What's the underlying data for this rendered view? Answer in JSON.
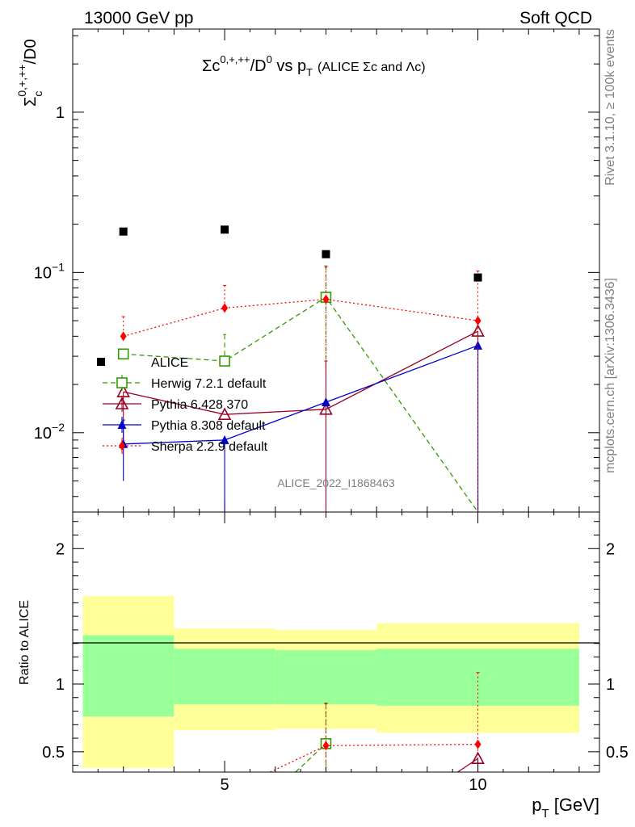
{
  "header": {
    "left": "13000 GeV pp",
    "right": "Soft QCD"
  },
  "side_labels": {
    "rivet": "Rivet 3.1.10, ≥ 100k events",
    "mcplots": "mcplots.cern.ch [arXiv:1306.3436]"
  },
  "analysis_id": "ALICE_2022_I1868463",
  "chart_data": [
    {
      "type": "line",
      "title_parts": {
        "main_base": "Σc",
        "main_sup": "0,+,++",
        "main_mid": "/D",
        "main_sup2": "0",
        "main_vs": " vs p",
        "main_sub": "T",
        "small": "(ALICE Σc and Λc)"
      },
      "ylabel_parts": {
        "base": "Σ",
        "sub": "c",
        "sup": "0,+,++",
        "tail": "/D0"
      },
      "yscale": "log",
      "ylim": [
        0.0032,
        3.3
      ],
      "xlim": [
        2,
        12.4
      ],
      "ytick_labels": [
        {
          "v": 1,
          "base": "1",
          "exp": ""
        },
        {
          "v": 0.1,
          "base": "10",
          "exp": "−1"
        },
        {
          "v": 0.01,
          "base": "10",
          "exp": "−2"
        }
      ],
      "legend_position": "left-middle",
      "data": {
        "name": "ALICE",
        "x": [
          3,
          5,
          7,
          10
        ],
        "y": [
          0.18,
          0.185,
          0.13,
          0.093
        ],
        "color": "#000000"
      },
      "series": [
        {
          "name": "Herwig 7.2.1 default",
          "x": [
            3,
            5,
            7,
            10
          ],
          "y": [
            0.031,
            0.028,
            0.07,
            0.0001
          ],
          "err_lo": [
            0.0,
            0.0,
            0.045,
            0.0
          ],
          "err_hi": [
            0.0,
            0.013,
            0.04,
            0.0
          ],
          "color": "#339900",
          "dash": "6,4",
          "marker": "open-square"
        },
        {
          "name": "Pythia 6.428 370",
          "x": [
            3,
            5,
            7,
            10
          ],
          "y": [
            0.018,
            0.013,
            0.014,
            0.043
          ],
          "err_lo": [
            0.009,
            0.0,
            0.014,
            0.043
          ],
          "err_hi": [
            0.0,
            0.0,
            0.014,
            0.0
          ],
          "color": "#990022",
          "dash": "",
          "marker": "open-triangle"
        },
        {
          "name": "Pythia 8.308 default",
          "x": [
            3,
            5,
            7,
            10
          ],
          "y": [
            0.0085,
            0.009,
            0.0155,
            0.035
          ],
          "err_lo": [
            0.0035,
            0.009,
            0.0,
            0.035
          ],
          "err_hi": [
            0.0035,
            0.0,
            0.0,
            0.0
          ],
          "color": "#0000cc",
          "dash": "",
          "marker": "filled-triangle"
        },
        {
          "name": "Sherpa 2.2.9 default",
          "x": [
            3,
            5,
            7,
            10
          ],
          "y": [
            0.04,
            0.06,
            0.068,
            0.05
          ],
          "err_lo": [
            0.0,
            0.0,
            0.045,
            0.05
          ],
          "err_hi": [
            0.013,
            0.023,
            0.04,
            0.052
          ],
          "color": "#ff0000",
          "dash": "2,3",
          "marker": "filled-diamond"
        }
      ]
    },
    {
      "type": "line",
      "ylabel": "Ratio to ALICE",
      "xlabel_parts": {
        "base": "p",
        "sub": "T",
        "tail": " [GeV]"
      },
      "ylim": [
        0.35,
        2.27
      ],
      "xlim": [
        2,
        12.4
      ],
      "yticks": [
        "0.5",
        "1",
        "2"
      ],
      "xticks": [
        "5",
        "10"
      ],
      "bands": [
        {
          "x0": 2.2,
          "x1": 4,
          "yellow": [
            0.38,
            1.65
          ],
          "green": [
            0.76,
            1.36
          ]
        },
        {
          "x0": 4,
          "x1": 6,
          "yellow": [
            0.66,
            1.41
          ],
          "green": [
            0.85,
            1.26
          ]
        },
        {
          "x0": 6,
          "x1": 8,
          "yellow": [
            0.67,
            1.4
          ],
          "green": [
            0.85,
            1.25
          ]
        },
        {
          "x0": 8,
          "x1": 12,
          "yellow": [
            0.64,
            1.45
          ],
          "green": [
            0.84,
            1.26
          ]
        }
      ],
      "band_colors": {
        "yellow": "#ffff99",
        "green": "#99ff99"
      },
      "series": [
        {
          "name": "Herwig 7.2.1 default",
          "x": [
            6.4,
            7
          ],
          "y": [
            0.35,
            0.56
          ],
          "err_lo": [
            0,
            0.2
          ],
          "err_hi": [
            0,
            0.3
          ],
          "color": "#339900",
          "dash": "6,4",
          "marker": "open-square"
        },
        {
          "name": "Sherpa 2.2.9 default",
          "x": [
            5.9,
            7,
            10
          ],
          "y": [
            0.35,
            0.545,
            0.555
          ],
          "err_lo": [
            0,
            0.2,
            0.2
          ],
          "err_hi": [
            0,
            0.31,
            0.53
          ],
          "color": "#ff0000",
          "dash": "2,3",
          "marker": "filled-diamond"
        },
        {
          "name": "Pythia 6.428 370",
          "x": [
            9.6,
            10
          ],
          "y": [
            0.35,
            0.45
          ],
          "err_lo": [
            0,
            0.1
          ],
          "err_hi": [
            0,
            0.0
          ],
          "color": "#990022",
          "dash": "",
          "marker": "open-triangle"
        }
      ]
    }
  ]
}
